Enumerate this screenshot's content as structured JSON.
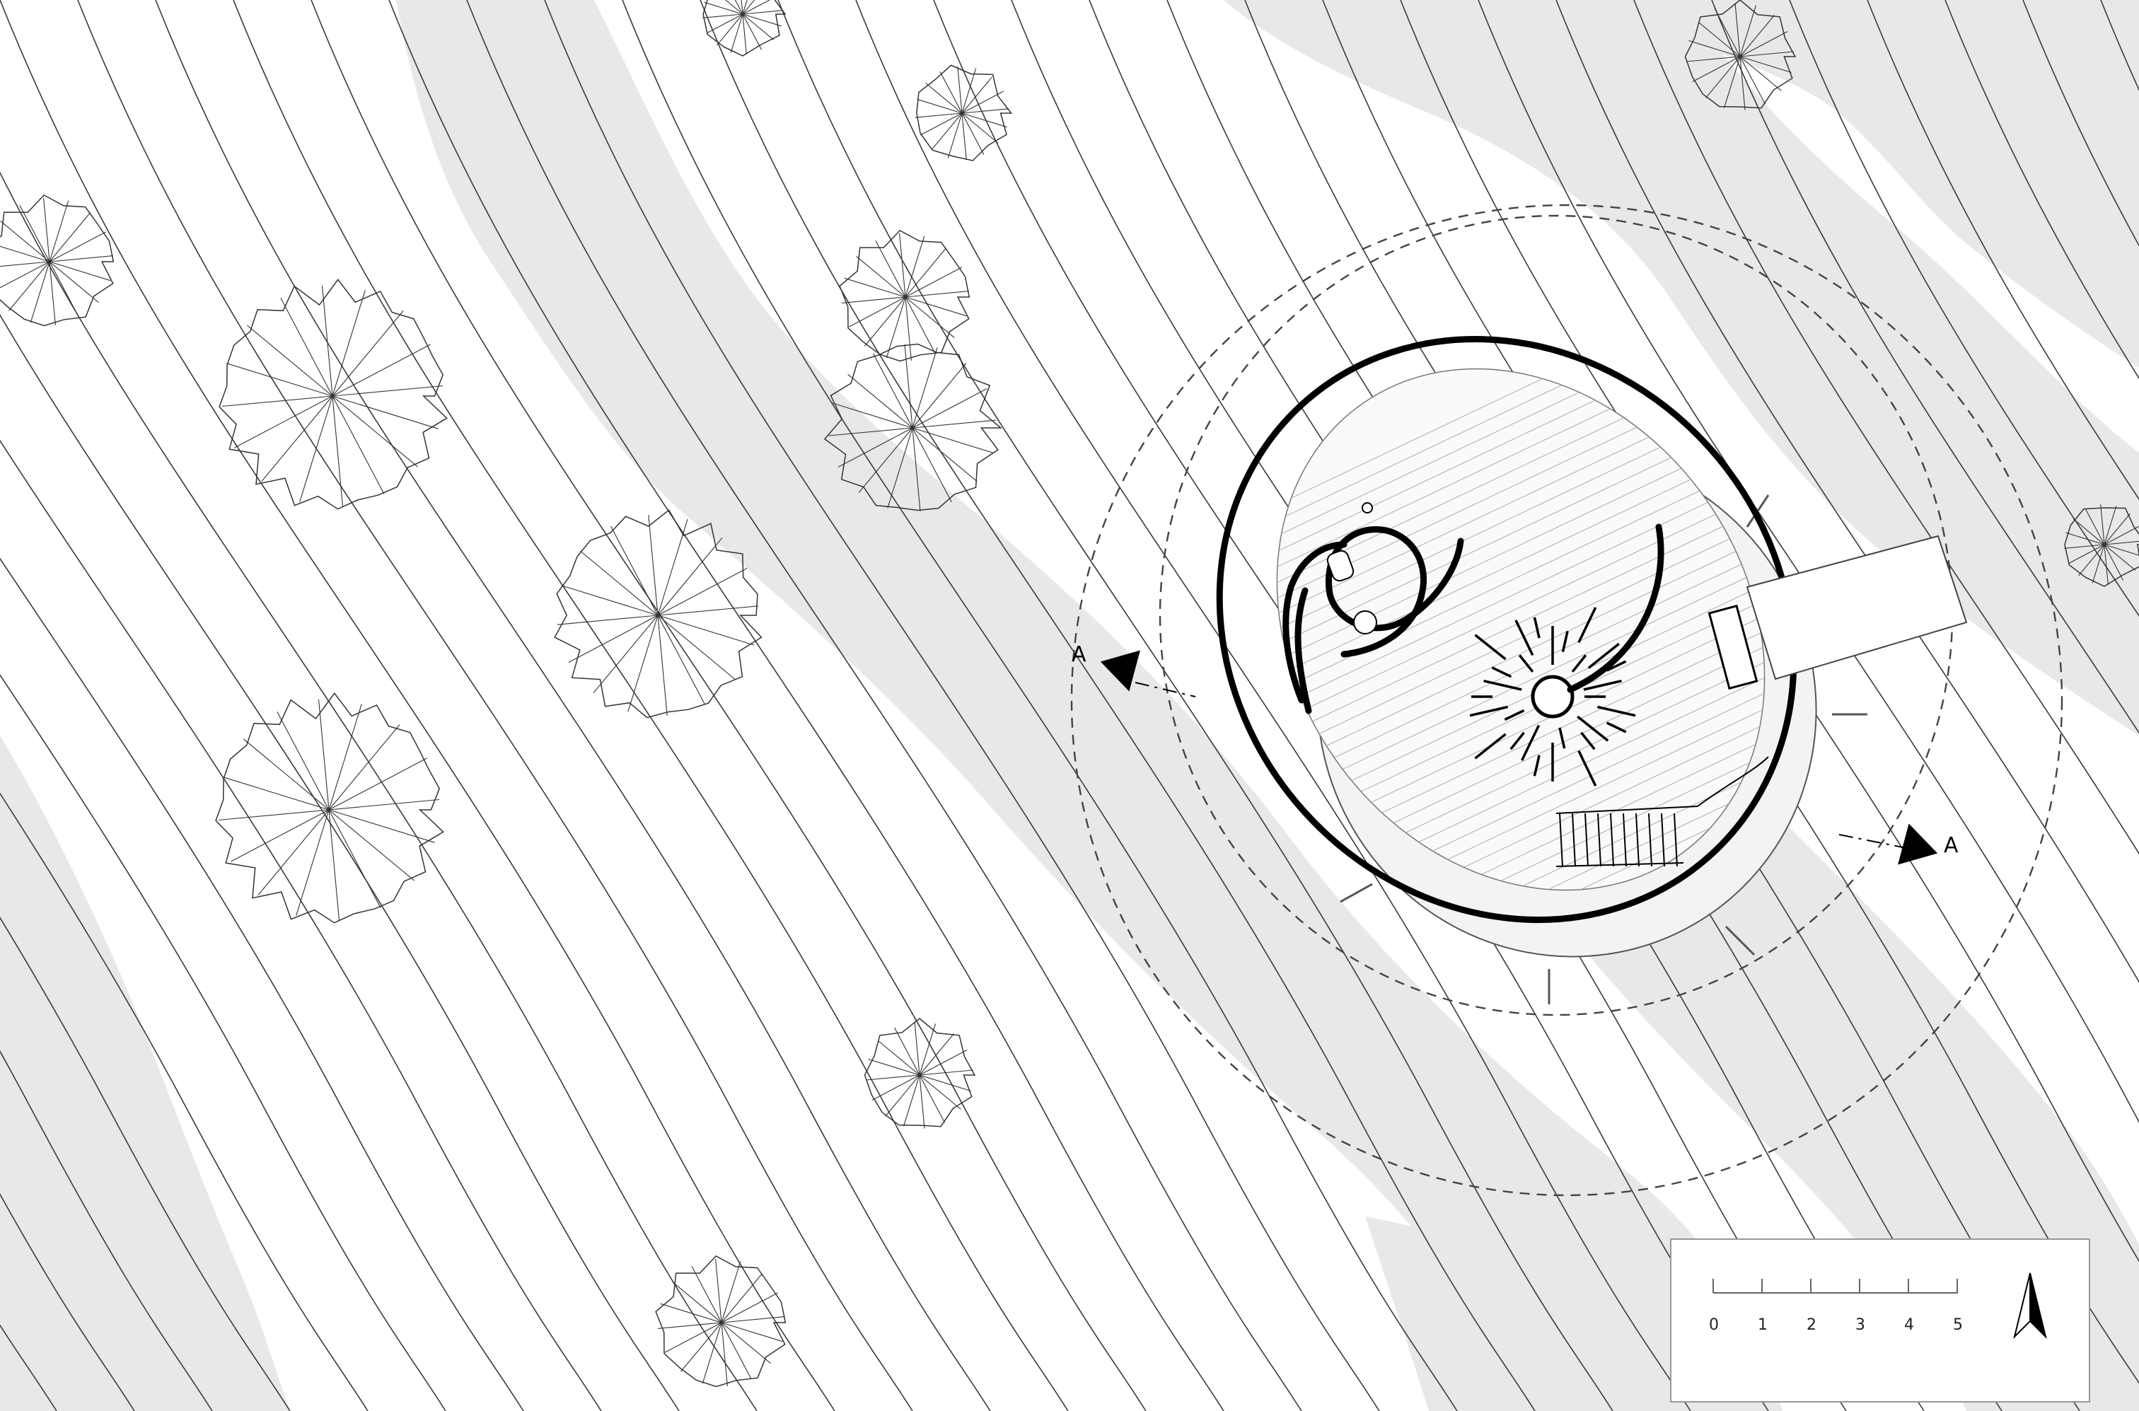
{
  "section_markers": {
    "west_label": "A",
    "east_label": "A"
  },
  "scale_bar": {
    "ticks": [
      "0",
      "1",
      "2",
      "3",
      "4",
      "5"
    ]
  },
  "north_arrow": {
    "icon": "north-arrow-icon"
  },
  "colors": {
    "shade": "#e8e8e8",
    "line": "#3a3a3a",
    "wall": "#000000"
  }
}
